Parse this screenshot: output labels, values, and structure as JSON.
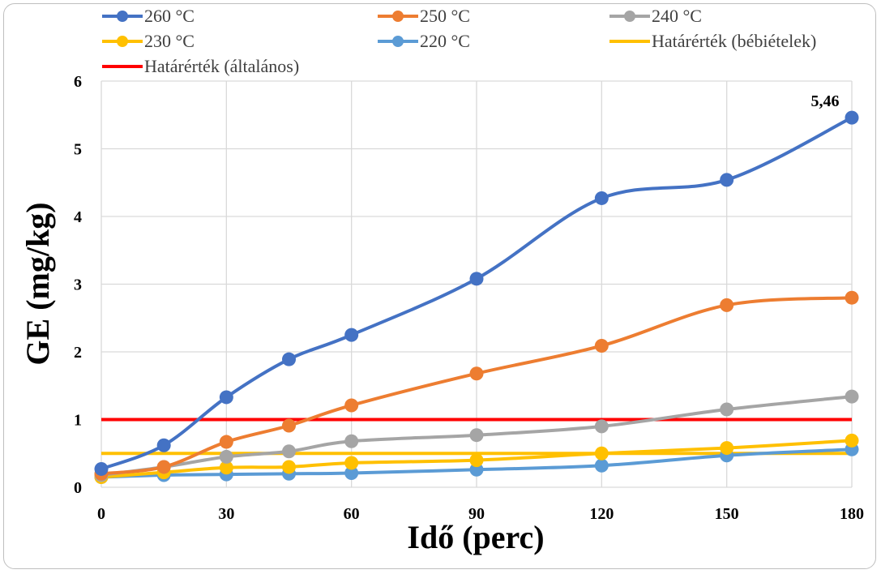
{
  "chart_data": {
    "type": "line",
    "xlabel": "Idő (perc)",
    "ylabel": "GE (mg/kg)",
    "x": [
      0,
      15,
      30,
      45,
      60,
      90,
      120,
      150,
      180
    ],
    "xticks": [
      0,
      30,
      60,
      90,
      120,
      150,
      180
    ],
    "yticks": [
      0,
      1,
      2,
      3,
      4,
      5,
      6
    ],
    "xlim": [
      0,
      180
    ],
    "ylim": [
      0,
      6
    ],
    "grid": true,
    "legend_position": "top",
    "annotation": {
      "text": "5,46",
      "x": 180,
      "y": 5.46
    },
    "series": [
      {
        "name": "260 °C",
        "color": "#4472C4",
        "marker": true,
        "values": [
          0.27,
          0.62,
          1.33,
          1.89,
          2.25,
          3.08,
          4.27,
          4.54,
          5.46
        ]
      },
      {
        "name": "250 °C",
        "color": "#ED7D31",
        "marker": true,
        "values": [
          0.2,
          0.3,
          0.67,
          0.91,
          1.21,
          1.68,
          2.09,
          2.69,
          2.8
        ]
      },
      {
        "name": "240 °C",
        "color": "#A5A5A5",
        "marker": true,
        "values": [
          0.18,
          0.3,
          0.45,
          0.53,
          0.68,
          0.77,
          0.9,
          1.15,
          1.34
        ]
      },
      {
        "name": "230 °C",
        "color": "#FFC000",
        "marker": true,
        "values": [
          0.15,
          0.22,
          0.29,
          0.3,
          0.36,
          0.4,
          0.5,
          0.58,
          0.69
        ]
      },
      {
        "name": "220 °C",
        "color": "#5B9BD5",
        "marker": true,
        "values": [
          0.15,
          0.18,
          0.19,
          0.2,
          0.21,
          0.26,
          0.32,
          0.47,
          0.56
        ]
      },
      {
        "name": "Határérték (bébiételek)",
        "color": "#FFC000",
        "marker": false,
        "values": [
          0.5,
          0.5,
          0.5,
          0.5,
          0.5,
          0.5,
          0.5,
          0.5,
          0.5
        ]
      },
      {
        "name": "Határérték (általános)",
        "color": "#FF0000",
        "marker": false,
        "values": [
          1,
          1,
          1,
          1,
          1,
          1,
          1,
          1,
          1
        ]
      }
    ]
  }
}
